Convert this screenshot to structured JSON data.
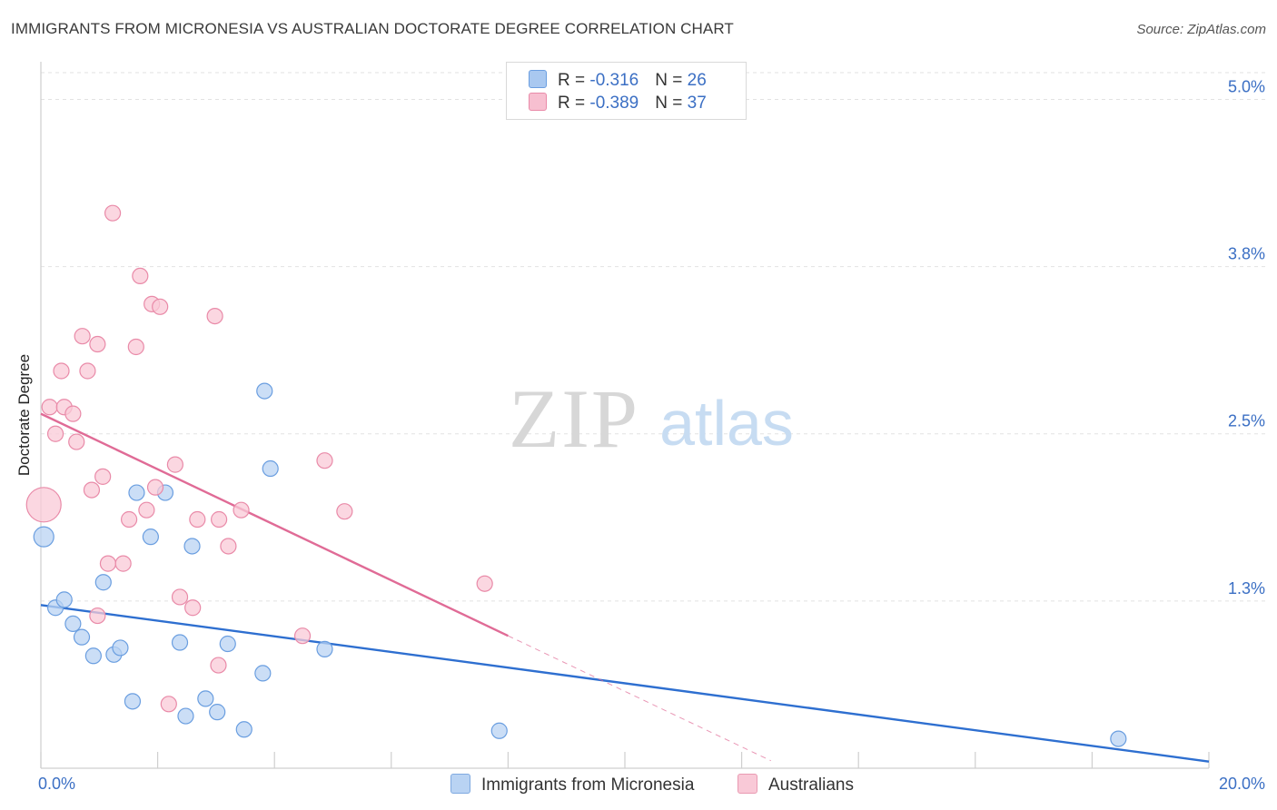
{
  "title": "IMMIGRANTS FROM MICRONESIA VS AUSTRALIAN DOCTORATE DEGREE CORRELATION CHART",
  "source": "Source: ZipAtlas.com",
  "watermark": {
    "zip": "ZIP",
    "atlas": "atlas"
  },
  "legend": {
    "rows": [
      {
        "r_label": "R = ",
        "r_value": "-0.316",
        "n_label": "N = ",
        "n_value": "26",
        "color": "#a9c8f0",
        "border": "#6a9ee0"
      },
      {
        "r_label": "R = ",
        "r_value": "-0.389",
        "n_label": "N = ",
        "n_value": "37",
        "color": "#f7bfd0",
        "border": "#e98aa8"
      }
    ]
  },
  "bottom_legend": [
    {
      "label": "Immigrants from Micronesia",
      "color": "#b9d3f3",
      "border": "#7fa9e0"
    },
    {
      "label": "Australians",
      "color": "#f9c9d7",
      "border": "#e99ab2"
    }
  ],
  "chart_data": {
    "type": "scatter",
    "xlabel": "",
    "ylabel": "Doctorate Degree",
    "xlim": [
      0,
      20
    ],
    "ylim": [
      0,
      5.2
    ],
    "x_tick_labels": [
      {
        "value": 0,
        "label": "0.0%"
      },
      {
        "value": 20,
        "label": "20.0%"
      }
    ],
    "y_tick_labels": [
      {
        "value": 1.25,
        "label": "1.3%"
      },
      {
        "value": 2.5,
        "label": "2.5%"
      },
      {
        "value": 3.75,
        "label": "3.8%"
      },
      {
        "value": 5.0,
        "label": "5.0%"
      }
    ],
    "grid": true,
    "series": [
      {
        "name": "Immigrants from Micronesia",
        "color": "#6a9ee0",
        "fill": "#b9d3f3",
        "trend": {
          "x": [
            0,
            20
          ],
          "y": [
            1.22,
            0.05
          ],
          "color": "#2e6fd0"
        },
        "points": [
          [
            0.05,
            1.73
          ],
          [
            0.25,
            1.2
          ],
          [
            0.4,
            1.26
          ],
          [
            0.55,
            1.08
          ],
          [
            0.7,
            0.98
          ],
          [
            0.9,
            0.84
          ],
          [
            1.07,
            1.39
          ],
          [
            1.25,
            0.85
          ],
          [
            1.36,
            0.9
          ],
          [
            1.57,
            0.5
          ],
          [
            1.64,
            2.06
          ],
          [
            1.88,
            1.73
          ],
          [
            2.13,
            2.06
          ],
          [
            2.38,
            0.94
          ],
          [
            2.48,
            0.39
          ],
          [
            2.59,
            1.66
          ],
          [
            2.82,
            0.52
          ],
          [
            3.02,
            0.42
          ],
          [
            3.2,
            0.93
          ],
          [
            3.48,
            0.29
          ],
          [
            3.8,
            0.71
          ],
          [
            3.83,
            2.82
          ],
          [
            3.93,
            2.24
          ],
          [
            4.86,
            0.89
          ],
          [
            7.85,
            0.28
          ],
          [
            18.45,
            0.22
          ]
        ]
      },
      {
        "name": "Australians",
        "color": "#e98aa8",
        "fill": "#f9c9d7",
        "trend": {
          "x": [
            0,
            8.0
          ],
          "y": [
            2.65,
            0.99
          ],
          "color": "#e06b96",
          "dash_to_x": 12.5
        },
        "points": [
          [
            0.05,
            1.97
          ],
          [
            0.15,
            2.7
          ],
          [
            0.25,
            2.5
          ],
          [
            0.35,
            2.97
          ],
          [
            0.4,
            2.7
          ],
          [
            0.55,
            2.65
          ],
          [
            0.61,
            2.44
          ],
          [
            0.71,
            3.23
          ],
          [
            0.8,
            2.97
          ],
          [
            0.87,
            2.08
          ],
          [
            0.97,
            1.14
          ],
          [
            0.97,
            3.17
          ],
          [
            1.06,
            2.18
          ],
          [
            1.15,
            1.53
          ],
          [
            1.23,
            4.15
          ],
          [
            1.41,
            1.53
          ],
          [
            1.51,
            1.86
          ],
          [
            1.63,
            3.15
          ],
          [
            1.7,
            3.68
          ],
          [
            1.81,
            1.93
          ],
          [
            1.9,
            3.47
          ],
          [
            1.96,
            2.1
          ],
          [
            2.04,
            3.45
          ],
          [
            2.19,
            0.48
          ],
          [
            2.3,
            2.27
          ],
          [
            2.38,
            1.28
          ],
          [
            2.6,
            1.2
          ],
          [
            2.68,
            1.86
          ],
          [
            2.98,
            3.38
          ],
          [
            3.04,
            0.77
          ],
          [
            3.05,
            1.86
          ],
          [
            3.21,
            1.66
          ],
          [
            3.43,
            1.93
          ],
          [
            4.48,
            0.99
          ],
          [
            4.86,
            2.3
          ],
          [
            5.2,
            1.92
          ],
          [
            7.6,
            1.38
          ]
        ]
      }
    ]
  }
}
